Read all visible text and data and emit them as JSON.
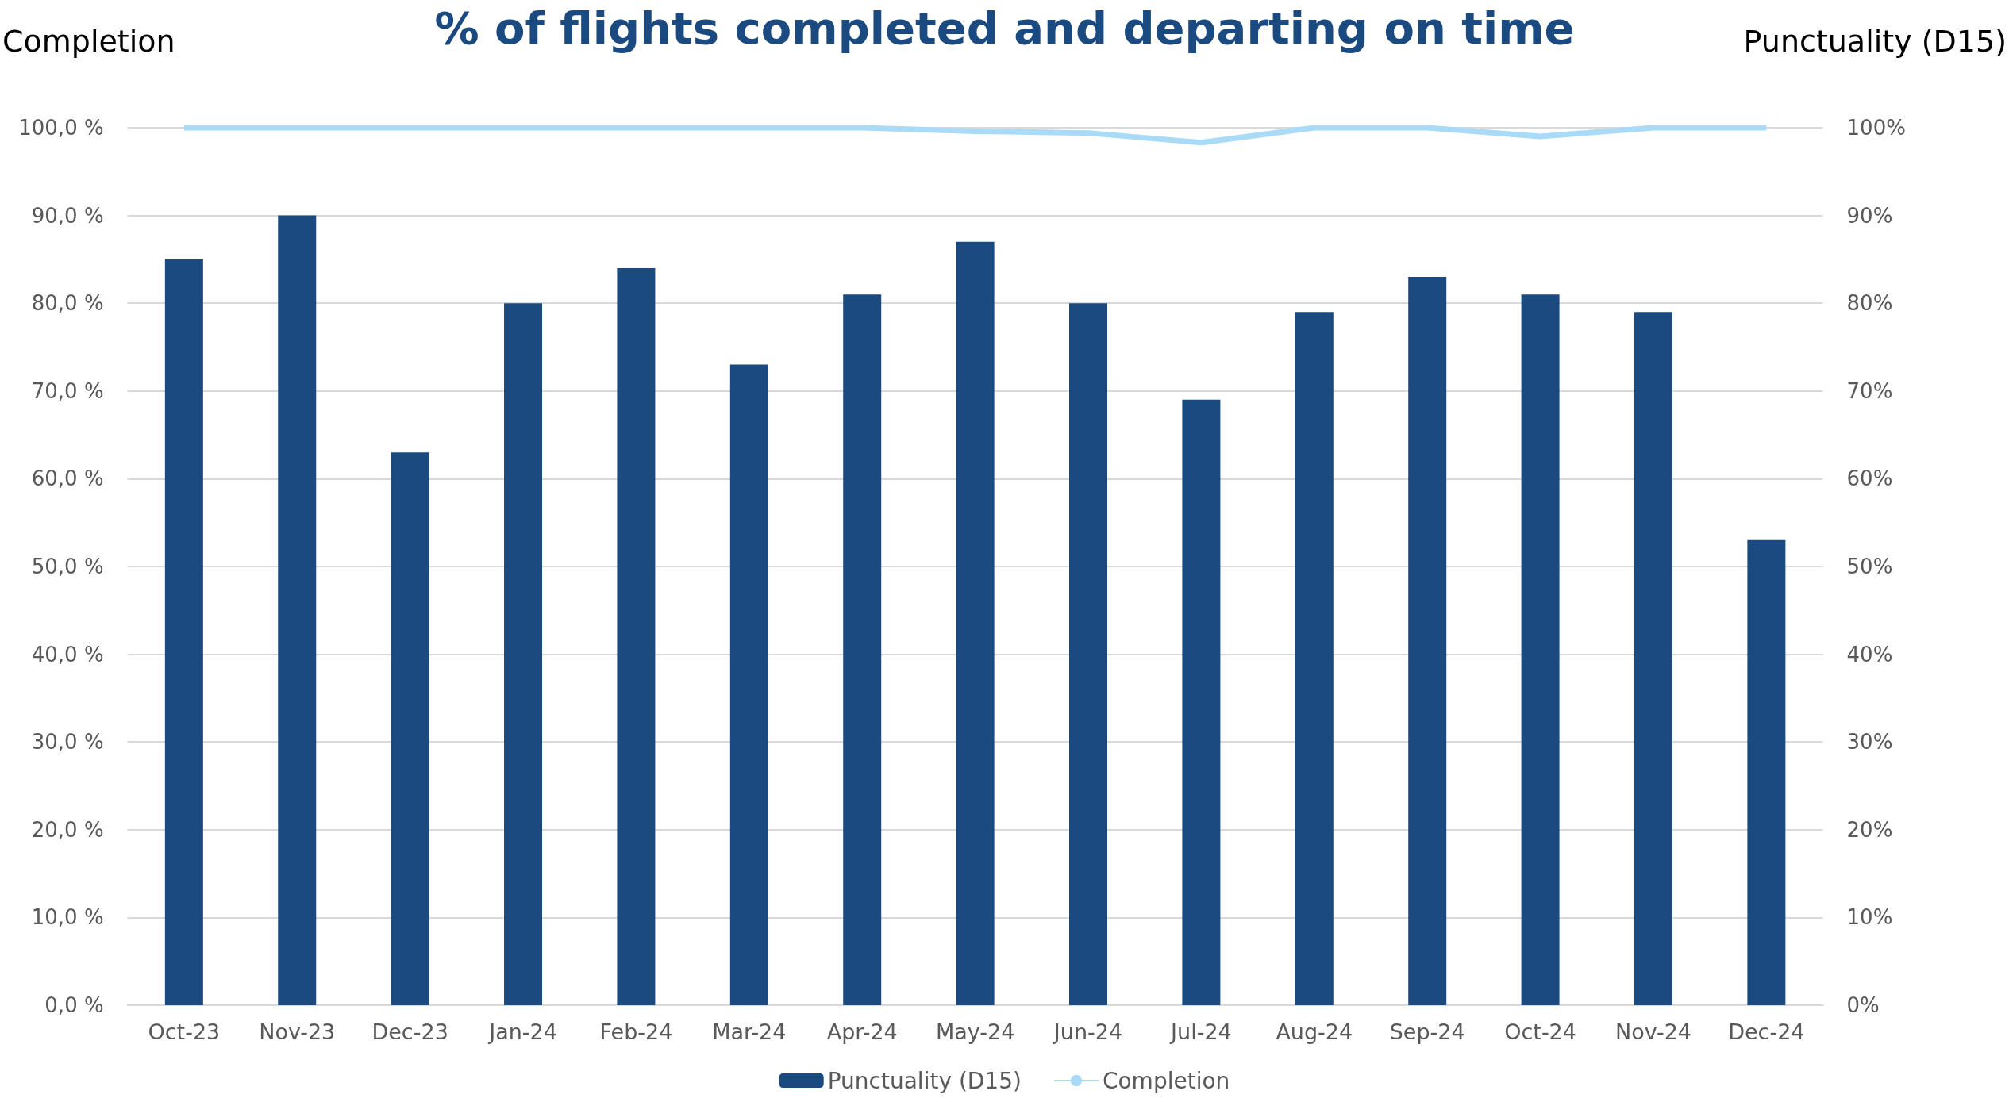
{
  "chart_data": {
    "type": "bar",
    "title": "% of flights completed and departing on time",
    "categories": [
      "Oct-23",
      "Nov-23",
      "Dec-23",
      "Jan-24",
      "Feb-24",
      "Mar-24",
      "Apr-24",
      "May-24",
      "Jun-24",
      "Jul-24",
      "Aug-24",
      "Sep-24",
      "Oct-24",
      "Nov-24",
      "Dec-24"
    ],
    "series": [
      {
        "name": "Punctuality (D15)",
        "color": "#1b4a80",
        "values": [
          85,
          90,
          63,
          80,
          84,
          73,
          81,
          87,
          80,
          69,
          79,
          83,
          81,
          79,
          53
        ]
      },
      {
        "name": "Completion",
        "type": "line",
        "color": "#a9dbf8",
        "values": [
          100,
          100,
          100,
          100,
          100,
          100,
          100,
          99.6,
          99.4,
          98.3,
          100,
          100,
          99.0,
          100,
          100
        ]
      }
    ],
    "ylabel": "Completion",
    "y2label": "Punctuality (D15)",
    "ylim": [
      0,
      100
    ],
    "yticks": [
      {
        "value": 0,
        "label": "0,0 %"
      },
      {
        "value": 10,
        "label": "10,0 %"
      },
      {
        "value": 20,
        "label": "20,0 %"
      },
      {
        "value": 30,
        "label": "30,0 %"
      },
      {
        "value": 40,
        "label": "40,0 %"
      },
      {
        "value": 50,
        "label": "50,0 %"
      },
      {
        "value": 60,
        "label": "60,0 %"
      },
      {
        "value": 70,
        "label": "70,0 %"
      },
      {
        "value": 80,
        "label": "80,0 %"
      },
      {
        "value": 90,
        "label": "90,0 %"
      },
      {
        "value": 100,
        "label": "100,0 %"
      }
    ],
    "y2lim": [
      0,
      100
    ],
    "y2ticks": [
      {
        "value": 0,
        "label": "0%"
      },
      {
        "value": 10,
        "label": "10%"
      },
      {
        "value": 20,
        "label": "20%"
      },
      {
        "value": 30,
        "label": "30%"
      },
      {
        "value": 40,
        "label": "40%"
      },
      {
        "value": 50,
        "label": "50%"
      },
      {
        "value": 60,
        "label": "60%"
      },
      {
        "value": 70,
        "label": "70%"
      },
      {
        "value": 80,
        "label": "80%"
      },
      {
        "value": 90,
        "label": "90%"
      },
      {
        "value": 100,
        "label": "100%"
      }
    ],
    "grid": "y",
    "legend": "bottom",
    "marker": "none"
  }
}
